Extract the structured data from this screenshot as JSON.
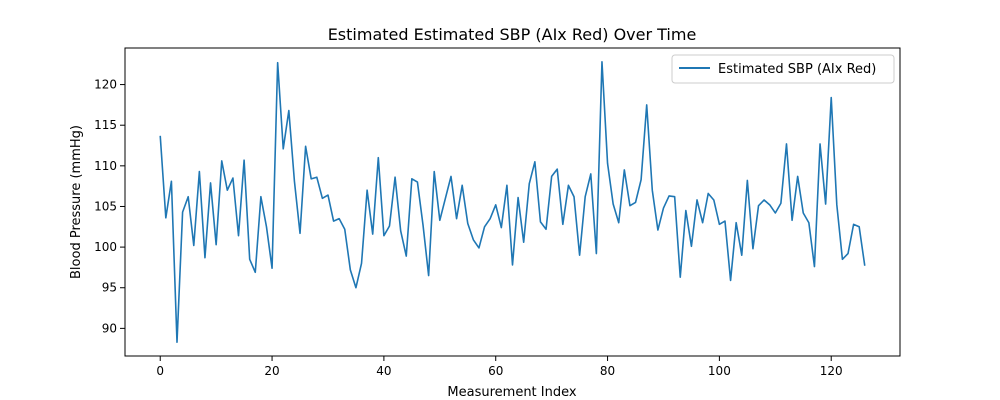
{
  "chart_data": {
    "type": "line",
    "title": "Estimated Estimated SBP (AIx Red) Over Time",
    "xlabel": "Measurement Index",
    "ylabel": "Blood Pressure (mmHg)",
    "xlim": [
      -6.3,
      132.3
    ],
    "ylim": [
      86.6,
      124.5
    ],
    "xticks": [
      0,
      20,
      40,
      60,
      80,
      100,
      120
    ],
    "yticks": [
      90,
      95,
      100,
      105,
      110,
      115,
      120
    ],
    "grid": false,
    "legend_position": "top-right",
    "series": [
      {
        "name": "Estimated SBP (AIx Red)",
        "color": "#1f77b4",
        "x": [
          0,
          1,
          2,
          3,
          4,
          5,
          6,
          7,
          8,
          9,
          10,
          11,
          12,
          13,
          14,
          15,
          16,
          17,
          18,
          19,
          20,
          21,
          22,
          23,
          24,
          25,
          26,
          27,
          28,
          29,
          30,
          31,
          32,
          33,
          34,
          35,
          36,
          37,
          38,
          39,
          40,
          41,
          42,
          43,
          44,
          45,
          46,
          47,
          48,
          49,
          50,
          51,
          52,
          53,
          54,
          55,
          56,
          57,
          58,
          59,
          60,
          61,
          62,
          63,
          64,
          65,
          66,
          67,
          68,
          69,
          70,
          71,
          72,
          73,
          74,
          75,
          76,
          77,
          78,
          79,
          80,
          81,
          82,
          83,
          84,
          85,
          86,
          87,
          88,
          89,
          90,
          91,
          92,
          93,
          94,
          95,
          96,
          97,
          98,
          99,
          100,
          101,
          102,
          103,
          104,
          105,
          106,
          107,
          108,
          109,
          110,
          111,
          112,
          113,
          114,
          115,
          116,
          117,
          118,
          119,
          120,
          121,
          122,
          123,
          124,
          125,
          126
        ],
        "values": [
          113.7,
          103.6,
          108.1,
          88.3,
          104.3,
          106.2,
          100.2,
          109.3,
          98.7,
          107.9,
          100.3,
          110.6,
          107.0,
          108.5,
          101.4,
          110.7,
          98.5,
          96.9,
          106.2,
          102.5,
          97.4,
          122.7,
          112.1,
          116.8,
          108.1,
          101.7,
          112.4,
          108.4,
          108.6,
          106.0,
          106.4,
          103.2,
          103.5,
          102.2,
          97.2,
          95.0,
          98.0,
          107.0,
          101.6,
          111.0,
          101.4,
          102.6,
          108.6,
          102.0,
          98.9,
          108.4,
          108.0,
          102.7,
          96.5,
          109.3,
          103.3,
          106.0,
          108.7,
          103.5,
          107.6,
          102.9,
          100.9,
          99.9,
          102.5,
          103.5,
          105.2,
          102.4,
          107.6,
          97.8,
          106.1,
          100.6,
          107.8,
          110.5,
          103.1,
          102.2,
          108.7,
          109.6,
          102.8,
          107.6,
          106.2,
          99.0,
          106.2,
          109.0,
          99.2,
          122.8,
          110.3,
          105.3,
          103.0,
          109.5,
          105.1,
          105.5,
          108.3,
          117.5,
          107.0,
          102.1,
          104.8,
          106.3,
          106.2,
          96.3,
          104.5,
          100.1,
          105.8,
          103.0,
          106.6,
          105.8,
          102.8,
          103.2,
          95.9,
          103.0,
          99.0,
          108.2,
          99.8,
          105.1,
          105.8,
          105.2,
          104.2,
          105.4,
          112.7,
          103.3,
          108.7,
          104.2,
          103.0,
          97.6,
          112.7,
          105.3,
          118.4,
          105.2,
          98.5,
          99.2,
          102.8,
          102.5,
          97.7
        ]
      }
    ]
  }
}
